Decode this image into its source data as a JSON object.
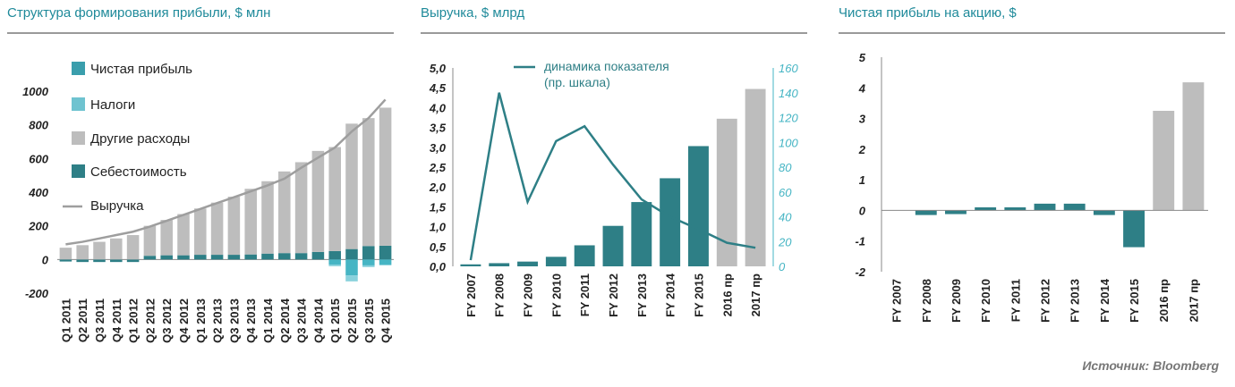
{
  "source": "Источник: Bloomberg",
  "colors": {
    "teal": "#2e7f86",
    "light_teal": "#46b5c4",
    "gray": "#bdbdbd",
    "line_gray": "#9e9e9e",
    "axis_right": "#46b5c4",
    "title": "#1f8a9a"
  },
  "chart_data": [
    {
      "type": "bar",
      "title": "Структура формирования прибыли, $ млн",
      "ylim": [
        -200,
        1000
      ],
      "yticks": [
        "1000",
        "800",
        "600",
        "400",
        "200",
        "0",
        "-200"
      ],
      "ytick_values": [
        1000,
        800,
        600,
        400,
        200,
        0,
        -200
      ],
      "categories": [
        "Q1 2011",
        "Q2 2011",
        "Q3 2011",
        "Q4 2011",
        "Q1 2012",
        "Q2 2012",
        "Q3 2012",
        "Q4 2012",
        "Q1 2013",
        "Q2 2013",
        "Q3 2013",
        "Q4 2013",
        "Q1 2014",
        "Q2 2014",
        "Q3 2014",
        "Q4 2014",
        "Q1 2015",
        "Q2 2015",
        "Q3 2015",
        "Q4 2015"
      ],
      "legend": [
        {
          "label": "Чистая прибыль",
          "color": "#3a9eac"
        },
        {
          "label": "Налоги",
          "color": "#6fc3d0"
        },
        {
          "label": "Другие расходы",
          "color": "#bdbdbd"
        },
        {
          "label": "Себестоимость",
          "color": "#2e7f86"
        },
        {
          "label": "Выручка",
          "color": "#9e9e9e"
        }
      ],
      "series": [
        {
          "name": "Себестоимость",
          "values": [
            -12,
            -15,
            -15,
            -15,
            -15,
            22,
            25,
            25,
            28,
            28,
            28,
            30,
            35,
            38,
            38,
            45,
            50,
            62,
            80,
            82
          ]
        },
        {
          "name": "Другие расходы",
          "values": [
            70,
            85,
            105,
            125,
            145,
            178,
            210,
            245,
            275,
            310,
            345,
            390,
            430,
            485,
            540,
            600,
            618,
            745,
            760,
            820
          ]
        },
        {
          "name": "Налоги",
          "values": [
            0,
            0,
            0,
            0,
            0,
            0,
            0,
            0,
            0,
            0,
            0,
            0,
            0,
            0,
            0,
            0,
            -30,
            -95,
            -35,
            -30
          ]
        },
        {
          "name": "Чистая прибыль",
          "values": [
            0,
            0,
            0,
            0,
            0,
            0,
            0,
            0,
            0,
            0,
            0,
            0,
            0,
            0,
            0,
            0,
            -10,
            -35,
            -10,
            -5
          ]
        },
        {
          "name": "Выручка",
          "values": [
            90,
            105,
            125,
            145,
            165,
            195,
            230,
            265,
            300,
            335,
            370,
            405,
            440,
            480,
            545,
            605,
            665,
            760,
            840,
            950
          ]
        }
      ]
    },
    {
      "type": "bar",
      "title": "Выручка, $ млрд",
      "ylim": [
        0,
        5
      ],
      "yticks": [
        "5,0",
        "4,5",
        "4,0",
        "3,5",
        "3,0",
        "2,5",
        "2,0",
        "1,5",
        "1,0",
        "0,5",
        "0,0"
      ],
      "ytick_values": [
        5,
        4.5,
        4,
        3.5,
        3,
        2.5,
        2,
        1.5,
        1,
        0.5,
        0
      ],
      "y2lim": [
        0,
        160
      ],
      "y2ticks": [
        "160",
        "140",
        "120",
        "100",
        "80",
        "60",
        "40",
        "20",
        "0"
      ],
      "y2tick_values": [
        160,
        140,
        120,
        100,
        80,
        60,
        40,
        20,
        0
      ],
      "categories": [
        "FY 2007",
        "FY 2008",
        "FY 2009",
        "FY 2010",
        "FY 2011",
        "FY 2012",
        "FY 2013",
        "FY 2014",
        "FY 2015",
        "2016 пр",
        "2017 пр"
      ],
      "bars": [
        0.05,
        0.08,
        0.12,
        0.24,
        0.53,
        1.02,
        1.62,
        2.22,
        3.03,
        3.72,
        4.47
      ],
      "bar_colors": [
        "#2e7f86",
        "#2e7f86",
        "#2e7f86",
        "#2e7f86",
        "#2e7f86",
        "#2e7f86",
        "#2e7f86",
        "#2e7f86",
        "#2e7f86",
        "#bdbdbd",
        "#bdbdbd"
      ],
      "line_label": "динамика показателя (пр. шкала)",
      "line_label_lines": [
        "динамика показателя",
        "(пр. шкала)"
      ],
      "line": [
        5,
        140,
        52,
        101,
        113,
        82,
        54,
        40,
        30,
        19,
        15
      ]
    },
    {
      "type": "bar",
      "title": "Чистая прибыль на акцию, $",
      "ylim": [
        -2,
        5
      ],
      "yticks": [
        "5",
        "4",
        "3",
        "2",
        "1",
        "0",
        "-1",
        "-2"
      ],
      "ytick_values": [
        5,
        4,
        3,
        2,
        1,
        0,
        -1,
        -2
      ],
      "categories": [
        "FY 2007",
        "FY 2008",
        "FY 2009",
        "FY 2010",
        "FY 2011",
        "FY 2012",
        "FY 2013",
        "FY 2014",
        "FY 2015",
        "2016 пр",
        "2017 пр"
      ],
      "values": [
        0.0,
        -0.15,
        -0.12,
        0.1,
        0.1,
        0.22,
        0.22,
        -0.15,
        -1.2,
        3.25,
        4.18
      ],
      "bar_colors": [
        "#2e7f86",
        "#2e7f86",
        "#2e7f86",
        "#2e7f86",
        "#2e7f86",
        "#2e7f86",
        "#2e7f86",
        "#2e7f86",
        "#2e7f86",
        "#bdbdbd",
        "#bdbdbd"
      ]
    }
  ]
}
